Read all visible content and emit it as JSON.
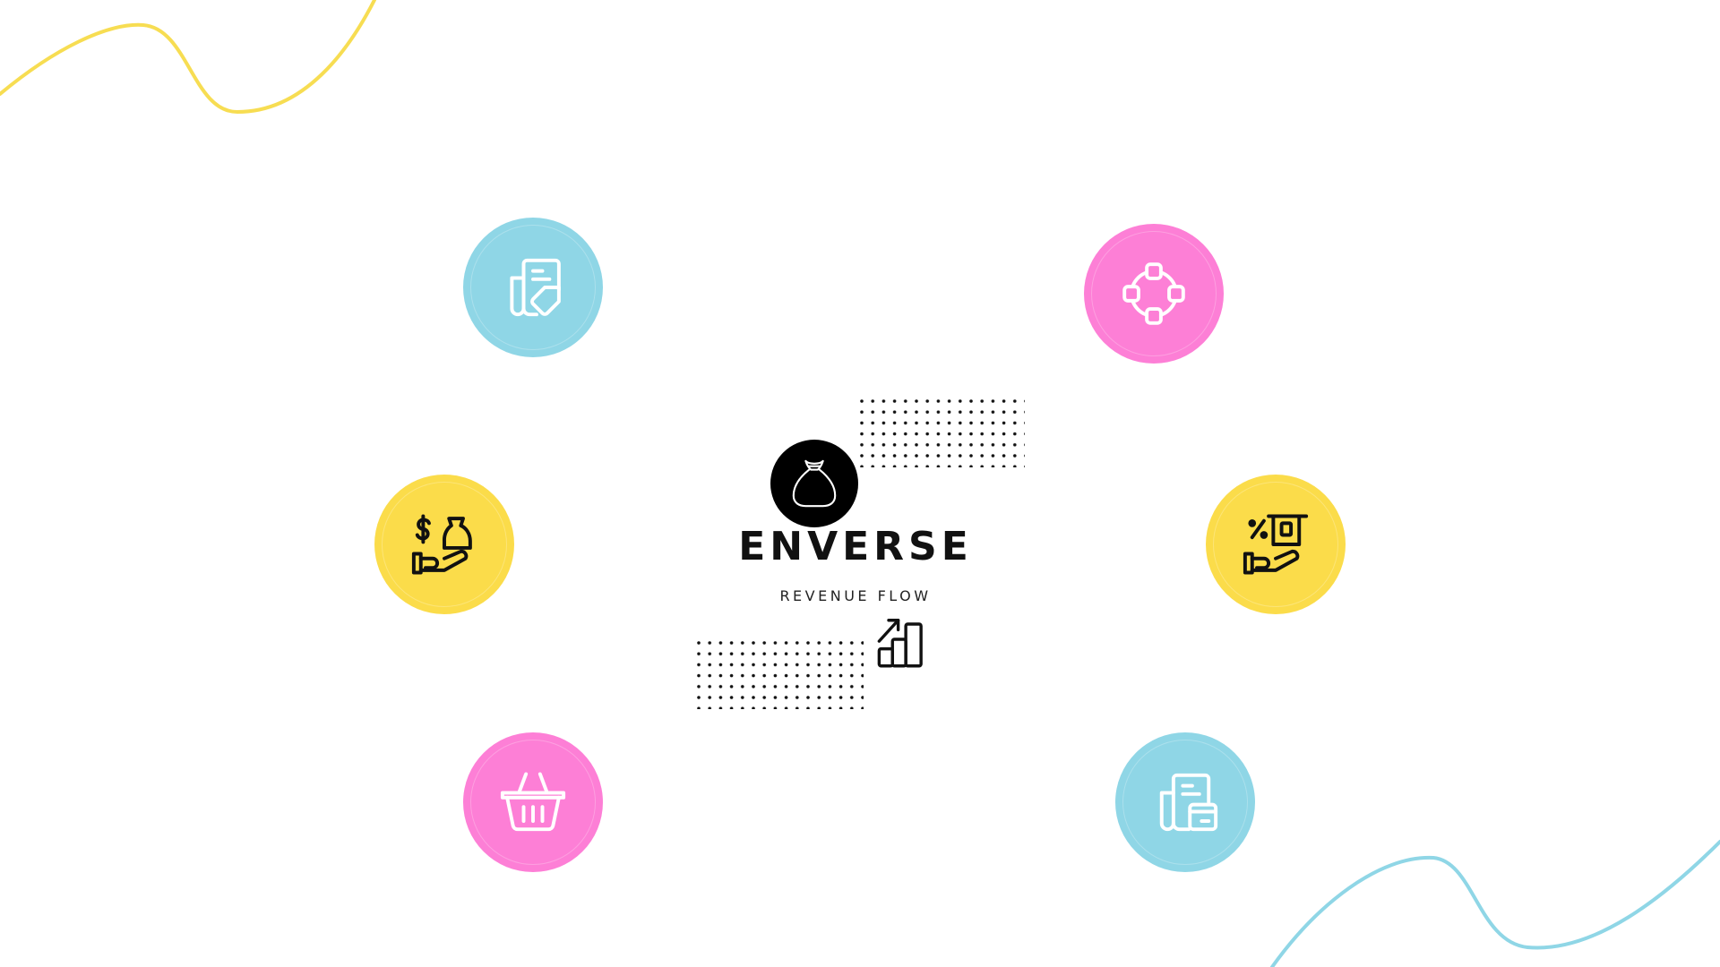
{
  "brand": {
    "name": "ENVERSE",
    "tagline": "REVENUE FLOW",
    "badge_icon": "money-bag-icon",
    "growth_icon": "growth-chart-icon"
  },
  "colors": {
    "blue": "#8fd6e6",
    "pink": "#fd7fd6",
    "yellow": "#fbdc4a",
    "black": "#000000"
  },
  "nodes": [
    {
      "icon": "invoice-tag-icon",
      "color": "#8fd6e6"
    },
    {
      "icon": "network-cycle-icon",
      "color": "#fd7fd6"
    },
    {
      "icon": "hand-money-bag-icon",
      "color": "#fbdc4a"
    },
    {
      "icon": "hand-discount-icon",
      "color": "#fbdc4a"
    },
    {
      "icon": "shopping-basket-icon",
      "color": "#fd7fd6"
    },
    {
      "icon": "invoice-card-icon",
      "color": "#8fd6e6"
    }
  ]
}
